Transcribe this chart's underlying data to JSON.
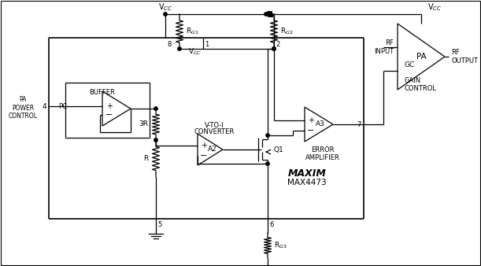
{
  "bg": "#ffffff",
  "lc": "#000000",
  "fig_w": 6.11,
  "fig_h": 3.38,
  "dpi": 100,
  "vcc": "V$_{CC}$",
  "rg1": "R$_{G1}$",
  "rg2": "R$_{G2}$",
  "rg3": "R$_{G3}$",
  "buf": "BUFFER",
  "vtoi1": "V-TO-I",
  "vtoi2": "CONVERTER",
  "a2": "A2",
  "a3": "A3",
  "q1": "Q1",
  "r_lbl": "R",
  "r3_lbl": "3R",
  "pa": "PA",
  "pc": "PC",
  "rf_in": "RF\nINPUT",
  "rf_out": "RF\nOUTPUT",
  "gc": "GC",
  "gain_ctrl": "GAIN\nCONTROL",
  "err_amp": "ERROR\nAMPLIFIER",
  "pa_ctrl": "PA\nPOWER\nCONTROL",
  "maxim": "MAX4473",
  "maxim_brand": "MAXIM",
  "p1": "1",
  "p2": "2",
  "p4": "4",
  "p5": "5",
  "p6": "6",
  "p7": "7",
  "p8": "8"
}
